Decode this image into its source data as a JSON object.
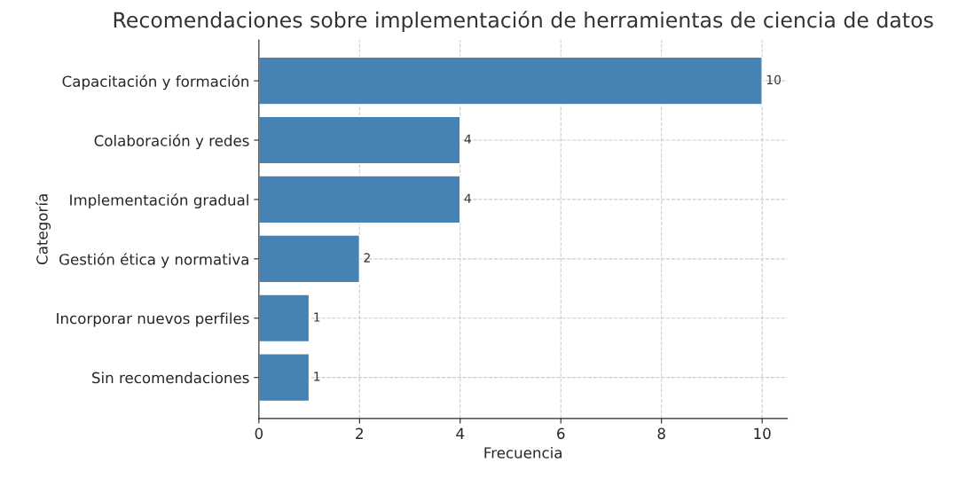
{
  "chart_data": {
    "type": "bar",
    "orientation": "horizontal",
    "title": "Recomendaciones sobre implementación de herramientas de ciencia de datos",
    "xlabel": "Frecuencia",
    "ylabel": "Categoría",
    "categories": [
      "Capacitación y formación",
      "Colaboración y redes",
      "Implementación gradual",
      "Gestión ética y normativa",
      "Incorporar nuevos perfiles",
      "Sin recomendaciones"
    ],
    "values": [
      10,
      4,
      4,
      2,
      1,
      1
    ],
    "color": "#4682b4",
    "xlim": [
      0,
      10.5
    ],
    "xticks": [
      0,
      2,
      4,
      6,
      8,
      10
    ],
    "grid": true,
    "data_labels": true
  }
}
